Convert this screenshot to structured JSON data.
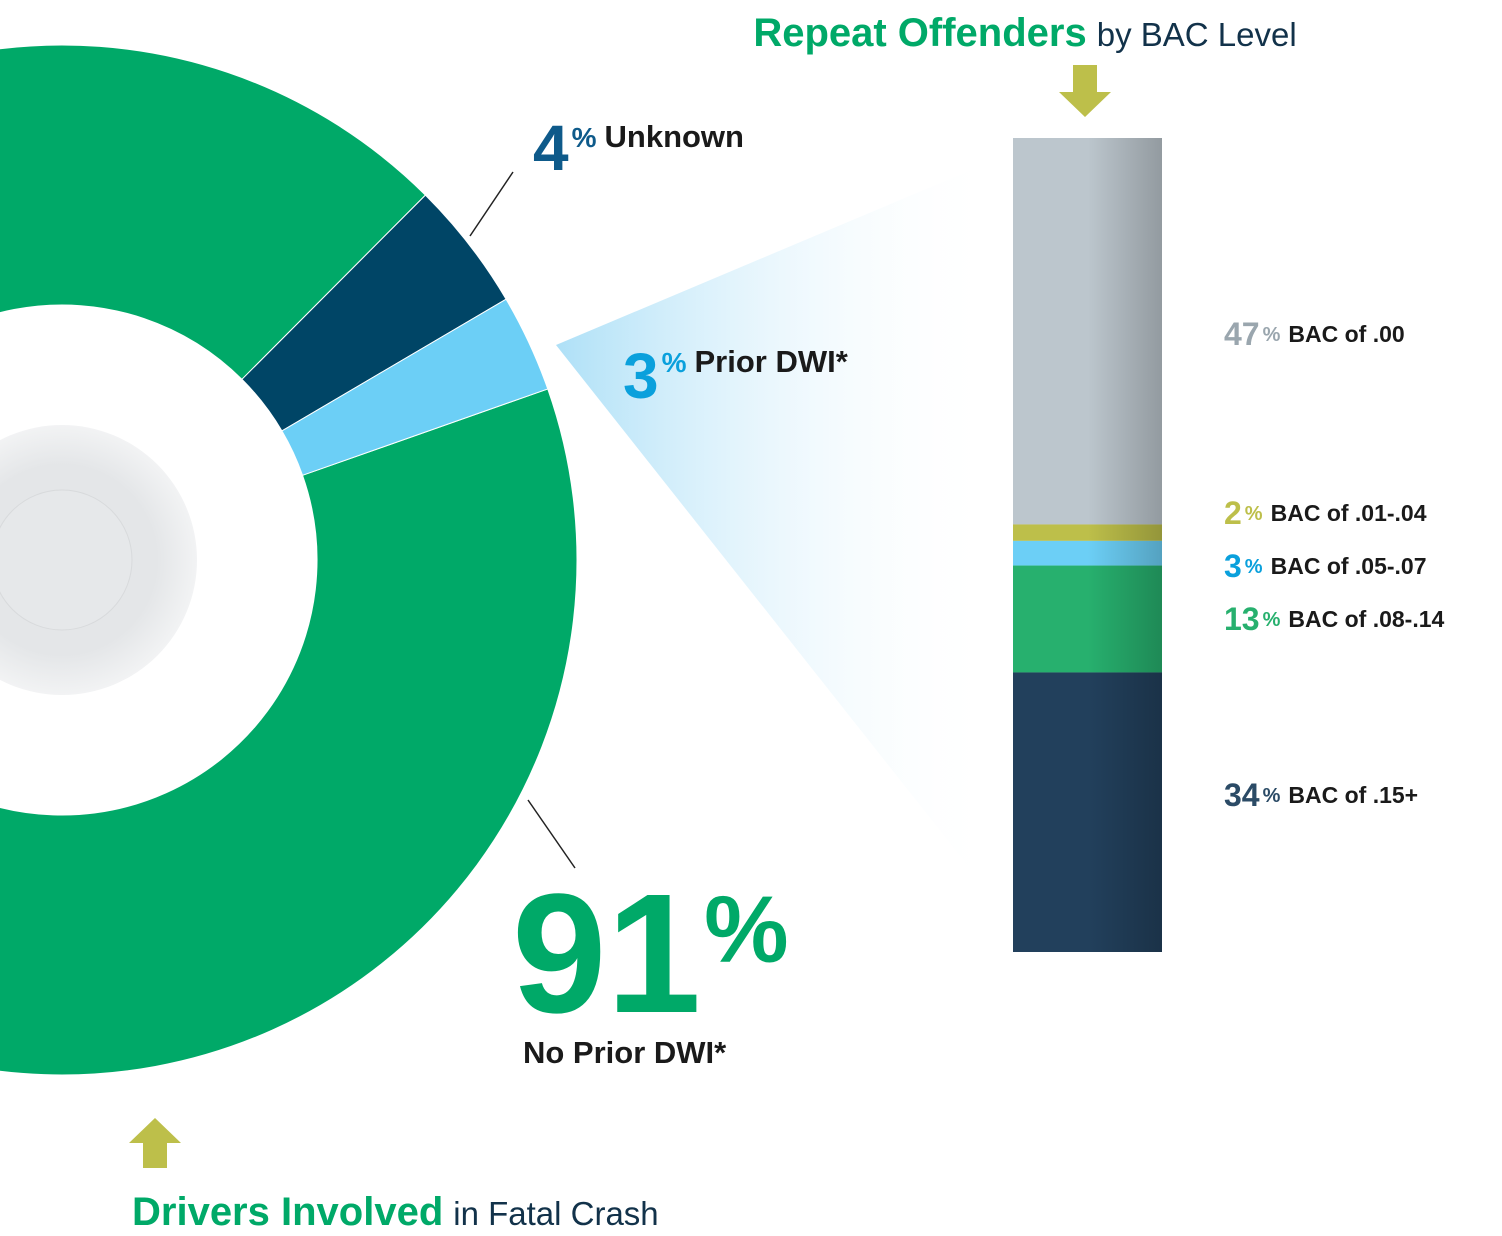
{
  "chart_data": [
    {
      "type": "pie",
      "title": "Drivers Involved",
      "subtitle": "in Fatal Crash",
      "unit": "%",
      "categories": [
        "No Prior DWI*",
        "Unknown",
        "Prior DWI*"
      ],
      "values": [
        91,
        4,
        3
      ],
      "colors": [
        "#00a968",
        "#004566",
        "#6ccff6"
      ],
      "label_colors": [
        "#00a968",
        "#0e5a8a",
        "#0aa0dc"
      ]
    },
    {
      "type": "bar",
      "title": "Repeat Offenders",
      "subtitle": "by BAC Level",
      "unit": "%",
      "categories": [
        "BAC of .00",
        "BAC of .01-.04",
        "BAC of .05-.07",
        "BAC of .08-.14",
        "BAC of .15+"
      ],
      "values": [
        47,
        2,
        3,
        13,
        34
      ],
      "colors": [
        "#bcc6cd",
        "#bdbf4a",
        "#6ccff6",
        "#27b06e",
        "#22405c"
      ],
      "label_colors": [
        "#9aa6ae",
        "#bdbf4a",
        "#0aa0dc",
        "#27b06e",
        "#2b4b66"
      ]
    }
  ]
}
